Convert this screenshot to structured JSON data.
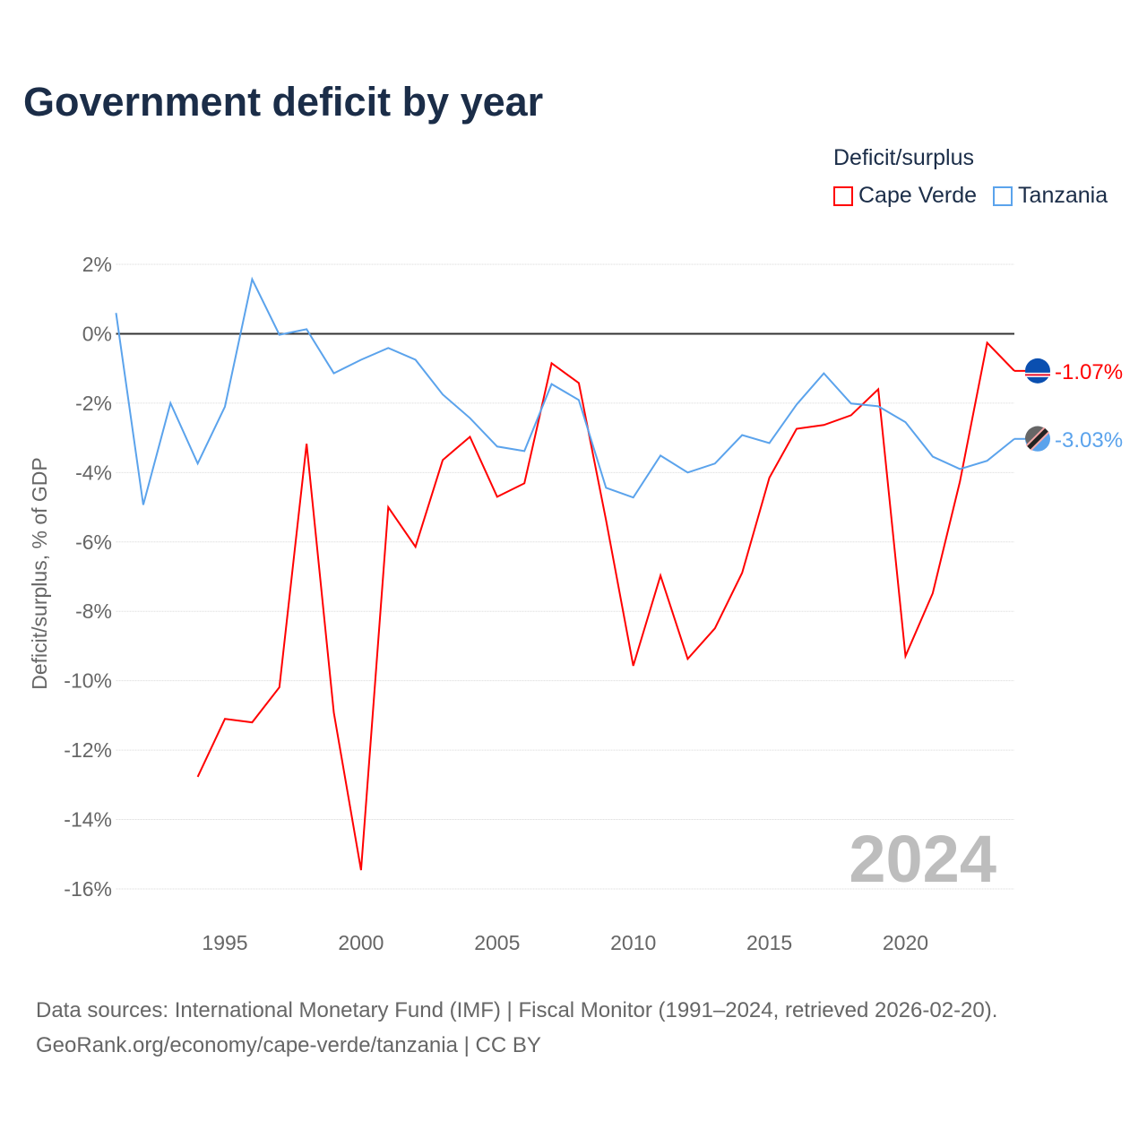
{
  "title": "Government deficit by year",
  "legend": {
    "title": "Deficit/surplus",
    "items": [
      {
        "label": "Cape Verde",
        "color": "#ff0000"
      },
      {
        "label": "Tanzania",
        "color": "#5ba3ec"
      }
    ]
  },
  "footer": {
    "line1": "Data sources: International Monetary Fund (IMF) | Fiscal Monitor (1991–2024, retrieved 2026-02-20).",
    "line2": "GeoRank.org/economy/cape-verde/tanzania | CC BY"
  },
  "chart_data": {
    "type": "line",
    "title": "Government deficit by year",
    "xlabel": "",
    "ylabel": "Deficit/surplus, % of GDP",
    "xlim": [
      1991,
      2024
    ],
    "ylim": [
      -16,
      2
    ],
    "x_ticks": [
      1995,
      2000,
      2005,
      2010,
      2015,
      2020
    ],
    "x_tick_labels": [
      "1995",
      "2000",
      "2005",
      "2010",
      "2015",
      "2020"
    ],
    "y_ticks": [
      2,
      0,
      -2,
      -4,
      -6,
      -8,
      -10,
      -12,
      -14,
      -16
    ],
    "y_tick_labels": [
      "2%",
      "0%",
      "-2%",
      "-4%",
      "-6%",
      "-8%",
      "-10%",
      "-12%",
      "-14%",
      "-16%"
    ],
    "grid": true,
    "legend_position": "top-right",
    "year_watermark": "2024",
    "series": [
      {
        "name": "Cape Verde",
        "color": "#ff0000",
        "end_label": "-1.07%",
        "x": [
          1994,
          1995,
          1996,
          1997,
          1998,
          1999,
          2000,
          2001,
          2002,
          2003,
          2004,
          2005,
          2006,
          2007,
          2008,
          2009,
          2010,
          2011,
          2012,
          2013,
          2014,
          2015,
          2016,
          2017,
          2018,
          2019,
          2020,
          2021,
          2022,
          2023,
          2024
        ],
        "values": [
          -12.77,
          -11.1,
          -11.2,
          -10.19,
          -3.17,
          -10.92,
          -15.46,
          -5.0,
          -6.14,
          -3.64,
          -2.97,
          -4.7,
          -4.31,
          -0.85,
          -1.42,
          -5.37,
          -9.57,
          -6.97,
          -9.37,
          -8.49,
          -6.89,
          -4.15,
          -2.74,
          -2.63,
          -2.35,
          -1.6,
          -9.29,
          -7.48,
          -4.26,
          -0.26,
          -1.07
        ]
      },
      {
        "name": "Tanzania",
        "color": "#5ba3ec",
        "end_label": "-3.03%",
        "x": [
          1991,
          1992,
          1993,
          1994,
          1995,
          1996,
          1997,
          1998,
          1999,
          2000,
          2001,
          2002,
          2003,
          2004,
          2005,
          2006,
          2007,
          2008,
          2009,
          2010,
          2011,
          2012,
          2013,
          2014,
          2015,
          2016,
          2017,
          2018,
          2019,
          2020,
          2021,
          2022,
          2023,
          2024
        ],
        "values": [
          0.6,
          -4.93,
          -2.0,
          -3.74,
          -2.1,
          1.57,
          -0.03,
          0.13,
          -1.14,
          -0.75,
          -0.41,
          -0.75,
          -1.75,
          -2.43,
          -3.25,
          -3.38,
          -1.45,
          -1.91,
          -4.44,
          -4.72,
          -3.51,
          -4.0,
          -3.74,
          -2.92,
          -3.15,
          -2.04,
          -1.14,
          -2.01,
          -2.09,
          -2.55,
          -3.54,
          -3.9,
          -3.66,
          -3.03
        ]
      }
    ]
  }
}
